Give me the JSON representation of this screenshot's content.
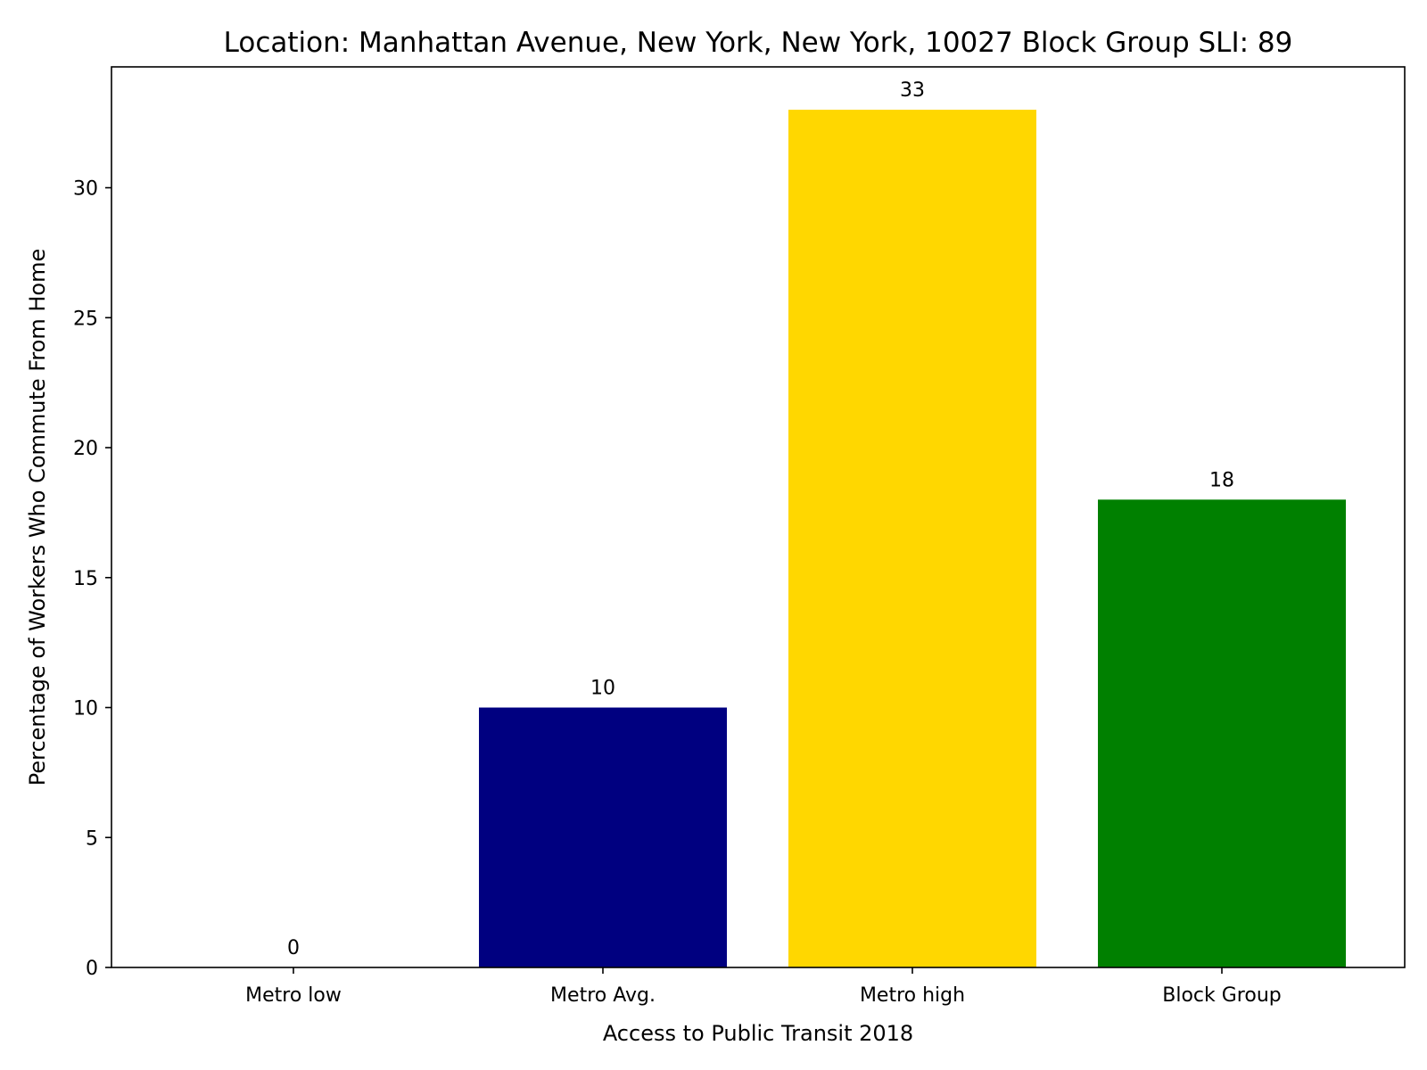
{
  "chart_data": {
    "type": "bar",
    "title": "Location: Manhattan Avenue, New York, New York, 10027 Block Group SLI: 89",
    "xlabel": "Access to Public Transit 2018",
    "ylabel": "Percentage of Workers Who Commute From Home",
    "categories": [
      "Metro low",
      "Metro Avg.",
      "Metro high",
      "Block Group"
    ],
    "values": [
      0,
      10,
      33,
      18
    ],
    "value_labels": [
      "0",
      "10",
      "33",
      "18"
    ],
    "bar_colors": [
      "#ffffff",
      "#000080",
      "#ffd700",
      "#008000"
    ],
    "ylim": [
      0,
      34.65
    ],
    "yticks": [
      0,
      5,
      10,
      15,
      20,
      25,
      30
    ],
    "ytick_labels": [
      "0",
      "5",
      "10",
      "15",
      "20",
      "25",
      "30"
    ],
    "grid": false,
    "legend": "none"
  }
}
